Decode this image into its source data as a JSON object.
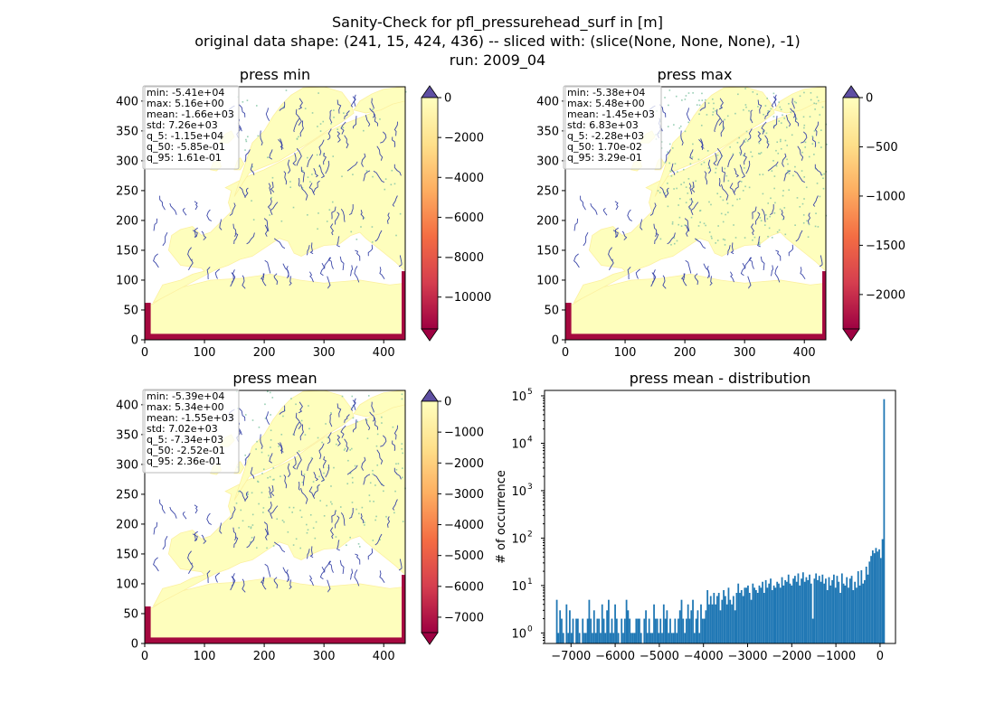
{
  "figure": {
    "suptitle_lines": [
      "Sanity-Check for pfl_pressurehead_surf in [m]",
      "original data shape: (241, 15, 424, 436) -- sliced with: (slice(None, None, None), -1)",
      "run: 2009_04"
    ]
  },
  "colors": {
    "land": "#fefebd",
    "land_edge": "#fcf0a0",
    "river": "#3a46a8",
    "highland": "#86c7a7",
    "boundary": "#a5093f",
    "hist_bar": "#1f77b4",
    "cmap_stops": [
      "#9e0142",
      "#d53e4f",
      "#f46d43",
      "#fdae61",
      "#fee08b",
      "#ffffbf"
    ],
    "over_color": "#5e4fa2"
  },
  "chart_data": [
    {
      "type": "heatmap",
      "title": "press min",
      "xlim": [
        0,
        436
      ],
      "ylim": [
        0,
        424
      ],
      "xticks": [
        0,
        100,
        200,
        300,
        400
      ],
      "yticks": [
        0,
        50,
        100,
        150,
        200,
        250,
        300,
        350,
        400
      ],
      "colorbar": {
        "vmin": -11600,
        "vmax": 0,
        "ticks": [
          0,
          -2000,
          -4000,
          -6000,
          -8000,
          -10000
        ],
        "extend": "both"
      },
      "stats": [
        "min: -5.41e+04",
        "max: 5.16e+00",
        "mean: -1.66e+03",
        "std: 7.26e+03",
        "q_5: -1.15e+04",
        "q_50: -5.85e-01",
        "q_95: 1.61e-01"
      ],
      "highland_density": 0.15
    },
    {
      "type": "heatmap",
      "title": "press max",
      "xlim": [
        0,
        436
      ],
      "ylim": [
        0,
        424
      ],
      "xticks": [
        0,
        100,
        200,
        300,
        400
      ],
      "yticks": [
        0,
        50,
        100,
        150,
        200,
        250,
        300,
        350,
        400
      ],
      "colorbar": {
        "vmin": -2350,
        "vmax": 0,
        "ticks": [
          0,
          -500,
          -1000,
          -1500,
          -2000
        ],
        "extend": "both"
      },
      "stats": [
        "min: -5.38e+04",
        "max: 5.48e+00",
        "mean: -1.45e+03",
        "std: 6.83e+03",
        "q_5: -2.28e+03",
        "q_50: 1.70e-02",
        "q_95: 3.29e-01"
      ],
      "highland_density": 0.6
    },
    {
      "type": "heatmap",
      "title": "press mean",
      "xlim": [
        0,
        436
      ],
      "ylim": [
        0,
        424
      ],
      "xticks": [
        0,
        100,
        200,
        300,
        400
      ],
      "yticks": [
        0,
        50,
        100,
        150,
        200,
        250,
        300,
        350,
        400
      ],
      "colorbar": {
        "vmin": -7500,
        "vmax": 0,
        "ticks": [
          0,
          -1000,
          -2000,
          -3000,
          -4000,
          -5000,
          -6000,
          -7000
        ],
        "extend": "both"
      },
      "stats": [
        "min: -5.39e+04",
        "max: 5.34e+00",
        "mean: -1.55e+03",
        "std: 7.02e+03",
        "q_5: -7.34e+03",
        "q_50: -2.52e-01",
        "q_95: 2.36e-01"
      ],
      "highland_density": 0.35
    },
    {
      "type": "bar",
      "title": "press mean - distribution",
      "xlabel": "",
      "ylabel": "# of occurrence",
      "yscale": "log",
      "xlim": [
        -7600,
        350
      ],
      "ylim": [
        0.6,
        130000
      ],
      "xticks": [
        -7000,
        -6000,
        -5000,
        -4000,
        -3000,
        -2000,
        -1000,
        0
      ],
      "yticks": [
        1,
        10,
        100,
        1000,
        10000,
        100000
      ],
      "bin_start": -7340,
      "bin_width": 36.7,
      "values": [
        5,
        1,
        3,
        2,
        1,
        0,
        4,
        1,
        3,
        1,
        2,
        0,
        2,
        2,
        1,
        0,
        2,
        1,
        1,
        2,
        5,
        2,
        1,
        3,
        1,
        2,
        2,
        1,
        4,
        2,
        1,
        3,
        5,
        1,
        2,
        1,
        4,
        2,
        1,
        0,
        2,
        1,
        2,
        5,
        3,
        2,
        1,
        1,
        1,
        2,
        2,
        2,
        1,
        0,
        2,
        3,
        1,
        2,
        1,
        1,
        4,
        2,
        2,
        1,
        2,
        1,
        4,
        2,
        3,
        1,
        2,
        1,
        1,
        2,
        1,
        2,
        3,
        5,
        2,
        1,
        2,
        4,
        2,
        3,
        5,
        1,
        2,
        3,
        1,
        4,
        2,
        2,
        3,
        8,
        4,
        6,
        4,
        7,
        4,
        6,
        7,
        3,
        5,
        8,
        6,
        4,
        9,
        5,
        4,
        6,
        3,
        7,
        11,
        7,
        8,
        6,
        9,
        9,
        10,
        7,
        5,
        11,
        9,
        8,
        7,
        10,
        9,
        12,
        7,
        13,
        9,
        11,
        14,
        8,
        10,
        9,
        12,
        11,
        9,
        15,
        10,
        13,
        12,
        17,
        11,
        10,
        14,
        16,
        12,
        18,
        10,
        14,
        19,
        12,
        15,
        13,
        17,
        11,
        2,
        14,
        18,
        13,
        16,
        12,
        17,
        11,
        14,
        8,
        15,
        10,
        13,
        17,
        9,
        16,
        12,
        7,
        18,
        11,
        10,
        15,
        9,
        14,
        16,
        8,
        12,
        9,
        20,
        10,
        21,
        11,
        13,
        25,
        17,
        32,
        42,
        55,
        48,
        62,
        52,
        58,
        38,
        95,
        85000
      ]
    }
  ]
}
